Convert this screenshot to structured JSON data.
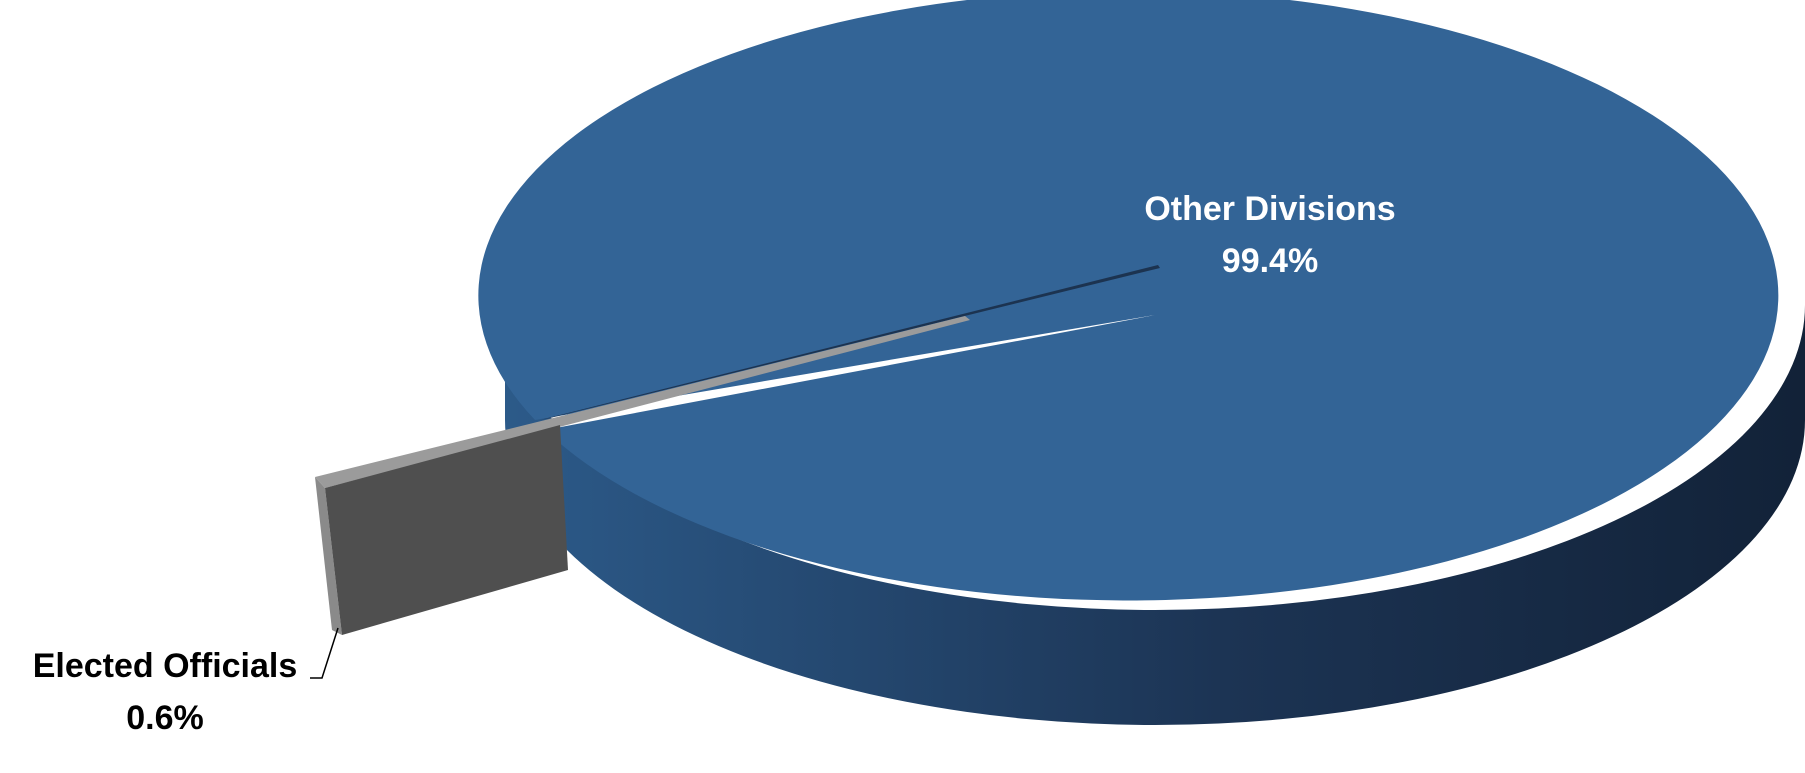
{
  "chart_data": {
    "type": "pie",
    "style": "3d-exploded",
    "title": "",
    "slices": [
      {
        "name": "Other Divisions",
        "value": 99.4,
        "label": "99.4%",
        "color": "#336496"
      },
      {
        "name": "Elected Officials",
        "value": 0.6,
        "label": "0.6%",
        "color": "#4f4f4f"
      }
    ],
    "side_color_light": "#2f5f90",
    "side_color_dark": "#14253b",
    "elected_top_color": "#9b9b9b"
  }
}
